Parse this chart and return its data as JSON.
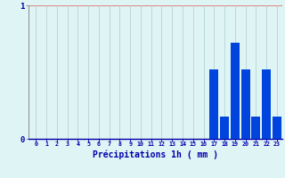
{
  "hours": [
    0,
    1,
    2,
    3,
    4,
    5,
    6,
    7,
    8,
    9,
    10,
    11,
    12,
    13,
    14,
    15,
    16,
    17,
    18,
    19,
    20,
    21,
    22,
    23
  ],
  "values": [
    0,
    0,
    0,
    0,
    0,
    0,
    0,
    0,
    0,
    0,
    0,
    0,
    0,
    0,
    0,
    0,
    0,
    0.52,
    0.17,
    0.72,
    0.52,
    0.17,
    0.52,
    0.17
  ],
  "bar_color": "#0044dd",
  "bg_color": "#dff5f5",
  "grid_color_h": "#dd8888",
  "grid_color_v": "#aacccc",
  "xlabel": "Précipitations 1h ( mm )",
  "xlabel_color": "#0000aa",
  "tick_color": "#0000aa",
  "ylim": [
    0,
    1
  ],
  "yticks": [
    0,
    1
  ],
  "figsize": [
    3.2,
    2.0
  ],
  "dpi": 100
}
